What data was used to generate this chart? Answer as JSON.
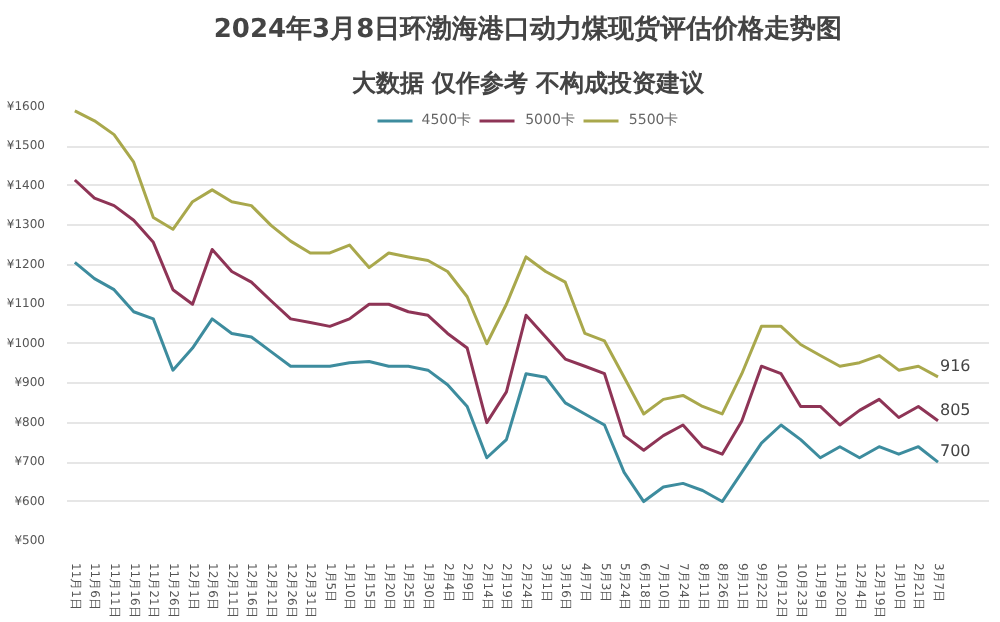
{
  "chart_data": {
    "type": "line",
    "title": "2024年3月8日环渤海港口动力煤现货评估价格走势图",
    "subtitle": "大数据 仅作参考 不构成投资建议",
    "categories": [
      "11月1日",
      "11月6日",
      "11月11日",
      "11月16日",
      "11月21日",
      "11月26日",
      "12月1日",
      "12月6日",
      "12月11日",
      "12月16日",
      "12月21日",
      "12月26日",
      "12月31日",
      "1月5日",
      "1月10日",
      "1月15日",
      "1月20日",
      "1月25日",
      "1月30日",
      "2月4日",
      "2月9日",
      "2月14日",
      "2月19日",
      "2月24日",
      "3月1日",
      "3月16日",
      "4月7日",
      "5月3日",
      "5月24日",
      "6月18日",
      "7月10日",
      "7月24日",
      "8月11日",
      "8月26日",
      "9月11日",
      "9月22日",
      "10月12日",
      "10月23日",
      "11月9日",
      "11月20日",
      "12月4日",
      "12月19日",
      "1月10日",
      "2月21日",
      "3月7日"
    ],
    "series": [
      {
        "name": "4500卡",
        "color": "#3d8c9e",
        "values": [
          1206,
          1165,
          1137,
          1081,
          1063,
          933,
          989,
          1063,
          1026,
          1017,
          980,
          943,
          943,
          943,
          952,
          955,
          943,
          943,
          933,
          896,
          841,
          711,
          757,
          924,
          915,
          850,
          822,
          794,
          674,
          600,
          637,
          646,
          628,
          600,
          674,
          748,
          794,
          757,
          711,
          739,
          711,
          739,
          720,
          739,
          700
        ],
        "value_labels": [
          null,
          null,
          null,
          null,
          null,
          null,
          null,
          null,
          null,
          null,
          null,
          null,
          null,
          null,
          null,
          null,
          null,
          null,
          null,
          null,
          null,
          null,
          null,
          null,
          null,
          null,
          null,
          null,
          null,
          null,
          null,
          null,
          null,
          null,
          null,
          null,
          null,
          null,
          null,
          null,
          null,
          null,
          null,
          null,
          "700"
        ]
      },
      {
        "name": "5000卡",
        "color": "#8e3456",
        "values": [
          1415,
          1369,
          1350,
          1313,
          1257,
          1137,
          1100,
          1239,
          1183,
          1156,
          1109,
          1063,
          1054,
          1044,
          1063,
          1100,
          1100,
          1081,
          1072,
          1026,
          989,
          800,
          878,
          1072,
          1017,
          961,
          943,
          924,
          767,
          730,
          767,
          794,
          739,
          720,
          804,
          943,
          924,
          841,
          841,
          794,
          831,
          859,
          813,
          841,
          805
        ],
        "value_labels": [
          null,
          null,
          null,
          null,
          null,
          null,
          null,
          null,
          null,
          null,
          null,
          null,
          null,
          null,
          null,
          null,
          null,
          null,
          null,
          null,
          null,
          null,
          null,
          null,
          null,
          null,
          null,
          null,
          null,
          null,
          null,
          null,
          null,
          null,
          null,
          null,
          null,
          null,
          null,
          null,
          null,
          null,
          null,
          null,
          "805"
        ]
      },
      {
        "name": "5500卡",
        "color": "#a9a84c",
        "values": [
          1590,
          1565,
          1530,
          1460,
          1320,
          1290,
          1360,
          1390,
          1360,
          1350,
          1300,
          1260,
          1230,
          1230,
          1250,
          1193,
          1230,
          1220,
          1211,
          1183,
          1119,
          1000,
          1100,
          1220,
          1183,
          1156,
          1026,
          1007,
          915,
          822,
          859,
          869,
          841,
          822,
          924,
          1044,
          1044,
          998,
          970,
          943,
          952,
          970,
          933,
          943,
          916
        ],
        "value_labels": [
          null,
          null,
          null,
          null,
          null,
          null,
          null,
          null,
          null,
          null,
          null,
          null,
          null,
          null,
          null,
          null,
          null,
          null,
          null,
          null,
          null,
          null,
          null,
          null,
          null,
          null,
          null,
          null,
          null,
          null,
          null,
          null,
          null,
          null,
          null,
          null,
          null,
          null,
          null,
          null,
          null,
          null,
          null,
          null,
          "916"
        ]
      }
    ],
    "ylim": [
      500,
      1600
    ],
    "yticks": [
      {
        "value": 500,
        "label": "¥500"
      },
      {
        "value": 600,
        "label": "¥600"
      },
      {
        "value": 700,
        "label": "¥700"
      },
      {
        "value": 800,
        "label": "¥800"
      },
      {
        "value": 900,
        "label": "¥900"
      },
      {
        "value": 1000,
        "label": "¥1000"
      },
      {
        "value": 1100,
        "label": "¥1100"
      },
      {
        "value": 1200,
        "label": "¥1200"
      },
      {
        "value": 1300,
        "label": "¥1300"
      },
      {
        "value": 1400,
        "label": "¥1400"
      },
      {
        "value": 1500,
        "label": "¥1500"
      },
      {
        "value": 1600,
        "label": "¥1600"
      }
    ],
    "grid": "y",
    "legend": "top",
    "marker": "none",
    "line_style": "solid"
  }
}
